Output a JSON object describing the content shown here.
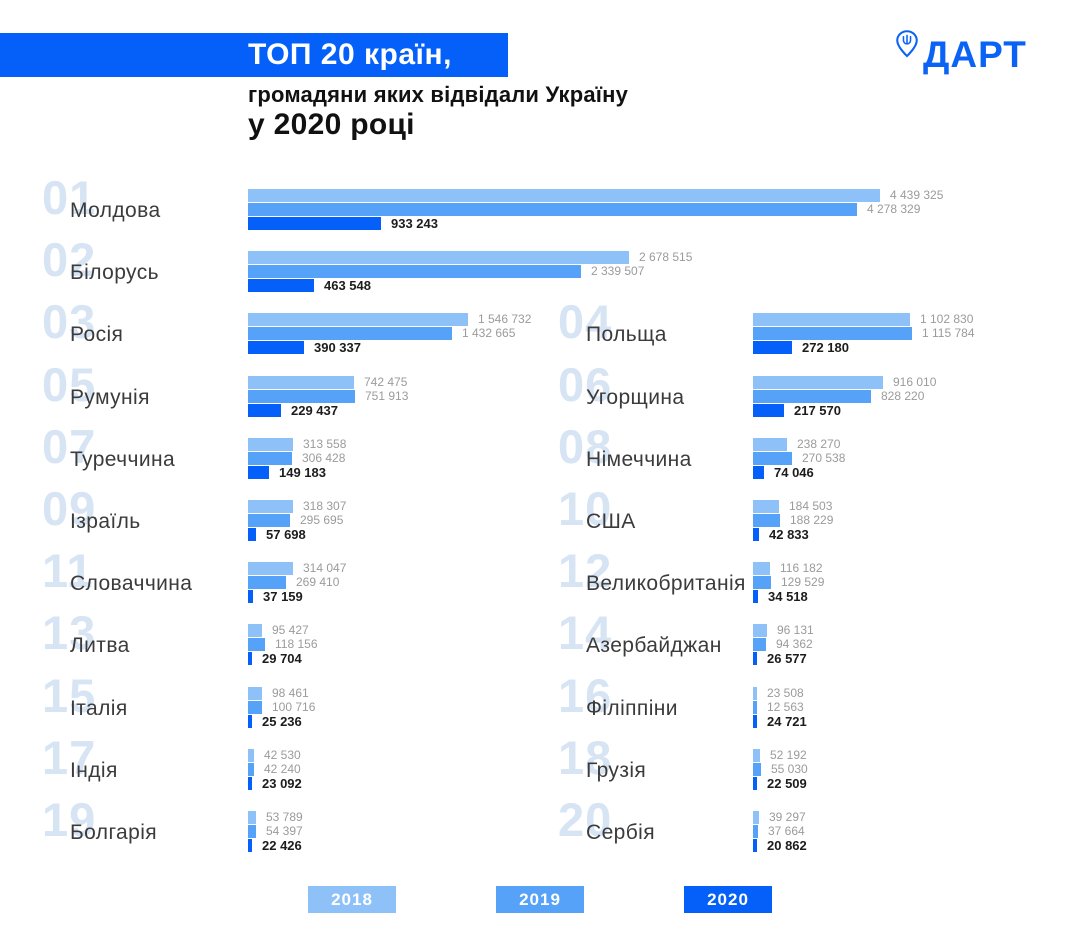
{
  "header": {
    "band_title": "ТОП 20 країн,",
    "subtitle": "громадяни яких відвідали Україну",
    "subtitle2": "у 2020 році"
  },
  "logo": {
    "text": "ДАРТ",
    "icon": "location-pin-trident-icon",
    "color": "#0B63F6"
  },
  "legend": [
    {
      "label": "2018",
      "color": "#8FC1F9"
    },
    {
      "label": "2019",
      "color": "#55A2F8"
    },
    {
      "label": "2020",
      "color": "#0560FA"
    }
  ],
  "chart_data": {
    "type": "bar",
    "orientation": "horizontal",
    "title": "ТОП 20 країн, громадяни яких відвідали Україну у 2020 році",
    "series_years": [
      "2018",
      "2019",
      "2020"
    ],
    "colors": {
      "2018": "#8FC1F9",
      "2019": "#55A2F8",
      "2020": "#0560FA"
    },
    "value_axis_hidden": true,
    "countries": [
      {
        "rank": "01",
        "name": "Молдова",
        "values": {
          "2018": 4439325,
          "2019": 4278329,
          "2020": 933243
        },
        "labels": {
          "2018": "4 439 325",
          "2019": "4 278 329",
          "2020": "933 243"
        }
      },
      {
        "rank": "02",
        "name": "Білорусь",
        "values": {
          "2018": 2678515,
          "2019": 2339507,
          "2020": 463548
        },
        "labels": {
          "2018": "2 678 515",
          "2019": "2 339 507",
          "2020": "463 548"
        }
      },
      {
        "rank": "03",
        "name": "Росія",
        "values": {
          "2018": 1546732,
          "2019": 1432665,
          "2020": 390337
        },
        "labels": {
          "2018": "1 546 732",
          "2019": "1 432 665",
          "2020": "390 337"
        }
      },
      {
        "rank": "04",
        "name": "Польща",
        "values": {
          "2018": 1102830,
          "2019": 1115784,
          "2020": 272180
        },
        "labels": {
          "2018": "1 102 830",
          "2019": "1 115 784",
          "2020": "272 180"
        }
      },
      {
        "rank": "05",
        "name": "Румунія",
        "values": {
          "2018": 742475,
          "2019": 751913,
          "2020": 229437
        },
        "labels": {
          "2018": "742 475",
          "2019": "751 913",
          "2020": "229 437"
        }
      },
      {
        "rank": "06",
        "name": "Угорщина",
        "values": {
          "2018": 916010,
          "2019": 828220,
          "2020": 217570
        },
        "labels": {
          "2018": "916 010",
          "2019": "828 220",
          "2020": "217 570"
        }
      },
      {
        "rank": "07",
        "name": "Туреччина",
        "values": {
          "2018": 313558,
          "2019": 306428,
          "2020": 149183
        },
        "labels": {
          "2018": "313 558",
          "2019": "306 428",
          "2020": "149 183"
        }
      },
      {
        "rank": "08",
        "name": "Німеччина",
        "values": {
          "2018": 238270,
          "2019": 270538,
          "2020": 74046
        },
        "labels": {
          "2018": "238 270",
          "2019": "270 538",
          "2020": "74 046"
        }
      },
      {
        "rank": "09",
        "name": "Ізраїль",
        "values": {
          "2018": 318307,
          "2019": 295695,
          "2020": 57698
        },
        "labels": {
          "2018": "318 307",
          "2019": "295 695",
          "2020": "57 698"
        }
      },
      {
        "rank": "10",
        "name": "США",
        "values": {
          "2018": 184503,
          "2019": 188229,
          "2020": 42833
        },
        "labels": {
          "2018": "184 503",
          "2019": "188 229",
          "2020": "42 833"
        }
      },
      {
        "rank": "11",
        "name": "Словаччина",
        "values": {
          "2018": 314047,
          "2019": 269410,
          "2020": 37159
        },
        "labels": {
          "2018": "314 047",
          "2019": "269 410",
          "2020": "37 159"
        }
      },
      {
        "rank": "12",
        "name": "Великобританія",
        "values": {
          "2018": 116182,
          "2019": 129529,
          "2020": 34518
        },
        "labels": {
          "2018": "116 182",
          "2019": "129 529",
          "2020": "34 518"
        }
      },
      {
        "rank": "13",
        "name": "Литва",
        "values": {
          "2018": 95427,
          "2019": 118156,
          "2020": 29704
        },
        "labels": {
          "2018": "95 427",
          "2019": "118 156",
          "2020": "29 704"
        }
      },
      {
        "rank": "14",
        "name": "Азербайджан",
        "values": {
          "2018": 96131,
          "2019": 94362,
          "2020": 26577
        },
        "labels": {
          "2018": "96 131",
          "2019": "94 362",
          "2020": "26 577"
        }
      },
      {
        "rank": "15",
        "name": "Італія",
        "values": {
          "2018": 98461,
          "2019": 100716,
          "2020": 25236
        },
        "labels": {
          "2018": "98 461",
          "2019": "100 716",
          "2020": "25 236"
        }
      },
      {
        "rank": "16",
        "name": "Філіппіни",
        "values": {
          "2018": 23508,
          "2019": 12563,
          "2020": 24721
        },
        "labels": {
          "2018": "23 508",
          "2019": "12 563",
          "2020": "24 721"
        }
      },
      {
        "rank": "17",
        "name": "Індія",
        "values": {
          "2018": 42530,
          "2019": 42240,
          "2020": 23092
        },
        "labels": {
          "2018": "42 530",
          "2019": "42 240",
          "2020": "23 092"
        }
      },
      {
        "rank": "18",
        "name": "Грузія",
        "values": {
          "2018": 52192,
          "2019": 55030,
          "2020": 22509
        },
        "labels": {
          "2018": "52 192",
          "2019": "55 030",
          "2020": "22 509"
        }
      },
      {
        "rank": "19",
        "name": "Болгарія",
        "values": {
          "2018": 53789,
          "2019": 54397,
          "2020": 22426
        },
        "labels": {
          "2018": "53 789",
          "2019": "54 397",
          "2020": "22 426"
        }
      },
      {
        "rank": "20",
        "name": "Сербія",
        "values": {
          "2018": 39297,
          "2019": 37664,
          "2020": 20862
        },
        "labels": {
          "2018": "39 297",
          "2019": "37 664",
          "2020": "20 862"
        }
      }
    ]
  }
}
